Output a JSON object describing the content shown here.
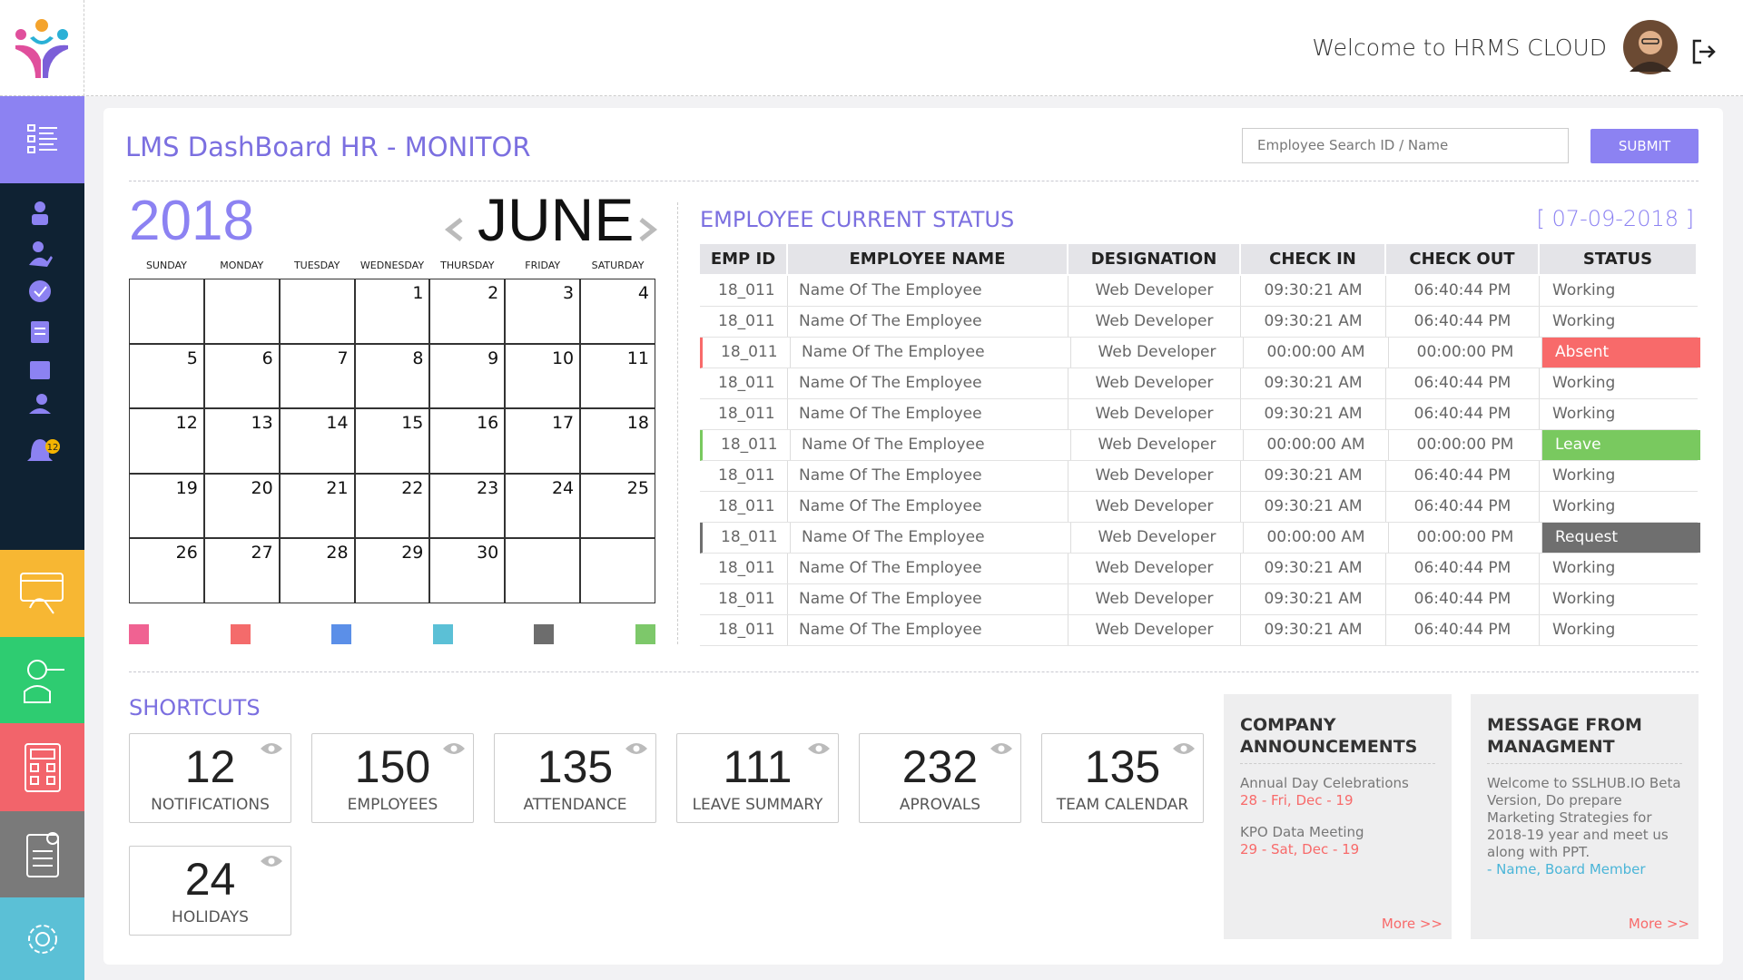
{
  "header": {
    "welcome": "Welcome to HRMS CLOUD"
  },
  "sidebar": {
    "notification_badge": "12"
  },
  "dashboard": {
    "title": "LMS DashBoard HR - MONITOR",
    "search_placeholder": "Employee Search ID / Name",
    "submit": "SUBMIT"
  },
  "calendar": {
    "year": "2018",
    "month": "JUNE",
    "weekdays": [
      "SUNDAY",
      "MONDAY",
      "TUESDAY",
      "WEDNESDAY",
      "THURSDAY",
      "FRIDAY",
      "SATURDAY"
    ],
    "weeks": [
      [
        null,
        null,
        null,
        1,
        2,
        3,
        4
      ],
      [
        5,
        6,
        7,
        8,
        9,
        10,
        11
      ],
      [
        12,
        13,
        14,
        15,
        16,
        17,
        18
      ],
      [
        19,
        20,
        21,
        22,
        23,
        24,
        25
      ],
      [
        26,
        27,
        28,
        29,
        30,
        null,
        null
      ]
    ],
    "legend_colors": [
      "#f06292",
      "#f46b6b",
      "#5b8fe8",
      "#5bc0d6",
      "#6d6d6d",
      "#7dc86a"
    ]
  },
  "status": {
    "title": "EMPLOYEE CURRENT STATUS",
    "date": "[ 07-09-2018 ]",
    "columns": [
      "EMP ID",
      "EMPLOYEE NAME",
      "DESIGNATION",
      "CHECK IN",
      "CHECK OUT",
      "STATUS"
    ],
    "rows": [
      {
        "cells": [
          "18_011",
          "Name Of The Employee",
          "Web Developer",
          "09:30:21 AM",
          "06:40:44 PM",
          "Working"
        ]
      },
      {
        "cells": [
          "18_011",
          "Name Of The Employee",
          "Web Developer",
          "09:30:21 AM",
          "06:40:44 PM",
          "Working"
        ]
      },
      {
        "cells": [
          "18_011",
          "Name Of The Employee",
          "Web Developer",
          "00:00:00 AM",
          "00:00:00 PM",
          "Absent"
        ],
        "color": "#f86a6a"
      },
      {
        "cells": [
          "18_011",
          "Name Of The Employee",
          "Web Developer",
          "09:30:21 AM",
          "06:40:44 PM",
          "Working"
        ]
      },
      {
        "cells": [
          "18_011",
          "Name Of The Employee",
          "Web Developer",
          "09:30:21 AM",
          "06:40:44 PM",
          "Working"
        ]
      },
      {
        "cells": [
          "18_011",
          "Name Of The Employee",
          "Web Developer",
          "00:00:00 AM",
          "00:00:00 PM",
          "Leave"
        ],
        "color": "#79c95f"
      },
      {
        "cells": [
          "18_011",
          "Name Of The Employee",
          "Web Developer",
          "09:30:21 AM",
          "06:40:44 PM",
          "Working"
        ]
      },
      {
        "cells": [
          "18_011",
          "Name Of The Employee",
          "Web Developer",
          "09:30:21 AM",
          "06:40:44 PM",
          "Working"
        ]
      },
      {
        "cells": [
          "18_011",
          "Name Of The Employee",
          "Web Developer",
          "00:00:00 AM",
          "00:00:00 PM",
          "Request"
        ],
        "color": "#6f6f6f"
      },
      {
        "cells": [
          "18_011",
          "Name Of The Employee",
          "Web Developer",
          "09:30:21 AM",
          "06:40:44 PM",
          "Working"
        ]
      },
      {
        "cells": [
          "18_011",
          "Name Of The Employee",
          "Web Developer",
          "09:30:21 AM",
          "06:40:44 PM",
          "Working"
        ]
      },
      {
        "cells": [
          "18_011",
          "Name Of The Employee",
          "Web Developer",
          "09:30:21 AM",
          "06:40:44 PM",
          "Working"
        ]
      }
    ]
  },
  "shortcuts": {
    "title": "SHORTCUTS",
    "cards": [
      {
        "count": 12,
        "label": "NOTIFICATIONS"
      },
      {
        "count": 150,
        "label": "EMPLOYEES"
      },
      {
        "count": 135,
        "label": "ATTENDANCE"
      },
      {
        "count": 111,
        "label": "LEAVE SUMMARY"
      },
      {
        "count": 232,
        "label": "APROVALS"
      },
      {
        "count": 135,
        "label": "TEAM CALENDAR"
      },
      {
        "count": 24,
        "label": "HOLIDAYS"
      }
    ]
  },
  "announcements": {
    "title": "COMPANY ANNOUNCEMENTS",
    "items": [
      {
        "text": "Annual Day Celebrations",
        "date": "28 - Fri, Dec - 19"
      },
      {
        "text": "KPO Data Meeting",
        "date": "29 - Sat, Dec - 19"
      }
    ],
    "more": "More >>"
  },
  "message": {
    "title": "MESSAGE FROM MANAGMENT",
    "text": "Welcome to SSLHUB.IO Beta Version, Do prepare Marketing Strategies for 2018-19 year and meet us along with PPT.",
    "author": "- Name, Board Member",
    "more": "More >>"
  }
}
